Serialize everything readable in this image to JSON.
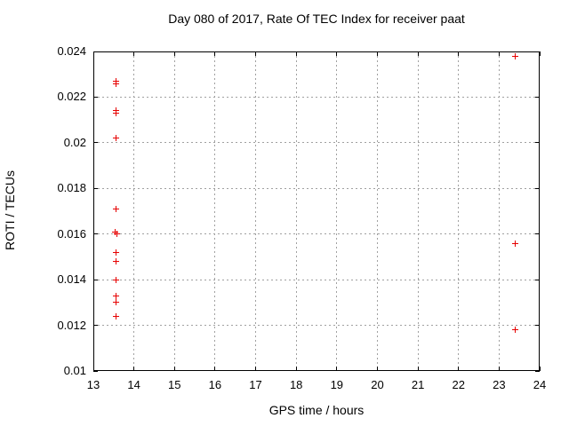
{
  "colors": {
    "marker": "#e60000",
    "grid": "#a0a0a0",
    "axis": "#000000",
    "text": "#000000",
    "background": "#ffffff"
  },
  "chart_data": {
    "type": "scatter",
    "title": "Day 080 of 2017, Rate Of TEC Index for receiver paat",
    "xlabel": "GPS time / hours",
    "ylabel": "ROTI / TECUs",
    "xlim": [
      13,
      24
    ],
    "ylim": [
      0.01,
      0.024
    ],
    "grid": true,
    "legend": "none",
    "marker_style": "plus",
    "x_ticks": [
      {
        "v": 13,
        "label": "13"
      },
      {
        "v": 14,
        "label": "14"
      },
      {
        "v": 15,
        "label": "15"
      },
      {
        "v": 16,
        "label": "16"
      },
      {
        "v": 17,
        "label": "17"
      },
      {
        "v": 18,
        "label": "18"
      },
      {
        "v": 19,
        "label": "19"
      },
      {
        "v": 20,
        "label": "20"
      },
      {
        "v": 21,
        "label": "21"
      },
      {
        "v": 22,
        "label": "22"
      },
      {
        "v": 23,
        "label": "23"
      },
      {
        "v": 24,
        "label": "24"
      }
    ],
    "y_ticks": [
      {
        "v": 0.01,
        "label": "0.01"
      },
      {
        "v": 0.012,
        "label": "0.012"
      },
      {
        "v": 0.014,
        "label": "0.014"
      },
      {
        "v": 0.016,
        "label": "0.016"
      },
      {
        "v": 0.018,
        "label": "0.018"
      },
      {
        "v": 0.02,
        "label": "0.02"
      },
      {
        "v": 0.022,
        "label": "0.022"
      },
      {
        "v": 0.024,
        "label": "0.024"
      }
    ],
    "series": [
      {
        "name": "ROTI",
        "points": [
          [
            13.55,
            0.0227
          ],
          [
            13.55,
            0.0226
          ],
          [
            13.55,
            0.0214
          ],
          [
            13.55,
            0.0213
          ],
          [
            13.55,
            0.0202
          ],
          [
            13.55,
            0.0171
          ],
          [
            13.53,
            0.0161
          ],
          [
            13.58,
            0.016
          ],
          [
            13.55,
            0.0152
          ],
          [
            13.55,
            0.0148
          ],
          [
            13.55,
            0.014
          ],
          [
            13.55,
            0.0133
          ],
          [
            13.55,
            0.013
          ],
          [
            13.55,
            0.0124
          ],
          [
            23.4,
            0.0238
          ],
          [
            23.4,
            0.0156
          ],
          [
            23.4,
            0.0118
          ]
        ]
      }
    ]
  }
}
